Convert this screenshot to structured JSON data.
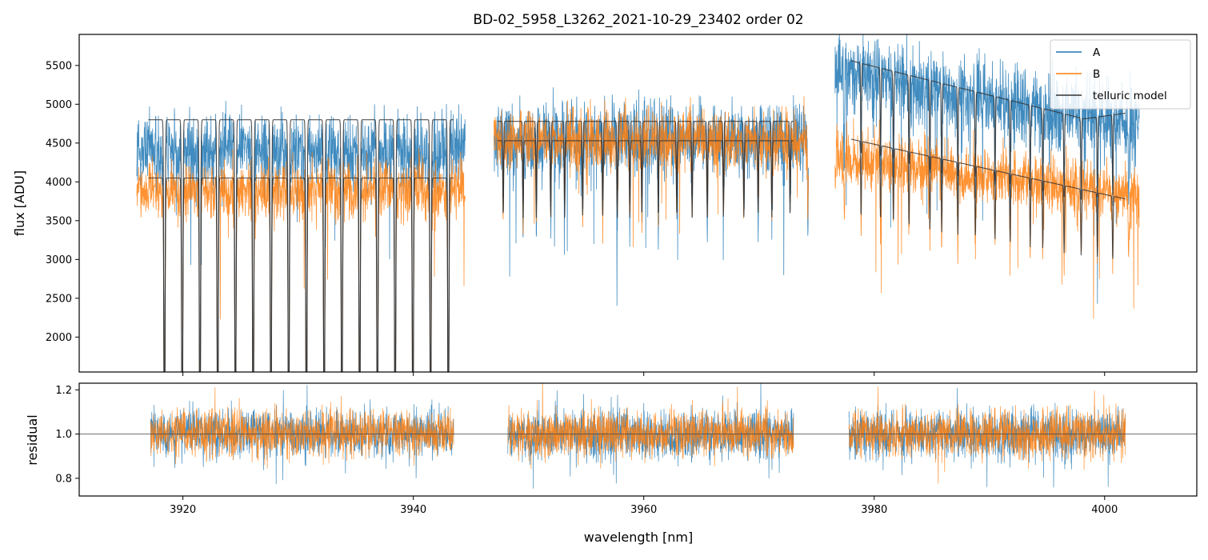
{
  "chart_data": [
    {
      "type": "line",
      "panel": "top",
      "title": "BD-02_5958_L3262_2021-10-29_23402  order 02",
      "xlabel": "",
      "ylabel": "flux [ADU]",
      "xlim": [
        3911,
        4008
      ],
      "ylim": [
        1550,
        5900
      ],
      "yticks": [
        2000,
        2500,
        3000,
        3500,
        4000,
        4500,
        5000,
        5500
      ],
      "ytick_labels": [
        "2000",
        "2500",
        "3000",
        "3500",
        "4000",
        "4500",
        "5000",
        "5500"
      ],
      "xticks": [
        3920,
        3940,
        3960,
        3980,
        4000
      ],
      "show_xtick_labels": false,
      "legend": {
        "placement": "top-right",
        "entries": [
          "A",
          "B",
          "telluric model"
        ]
      },
      "segments": [
        {
          "x_range": [
            3916.0,
            3944.5
          ],
          "A_level": 4400,
          "B_level": 3900,
          "model_A": 4800,
          "model_B": 4050,
          "deep_lines": true
        },
        {
          "x_range": [
            3947.0,
            3974.3
          ],
          "A_level": 4550,
          "B_level": 4550,
          "model_A": 4780,
          "model_B": 4530,
          "deep_lines": false
        },
        {
          "x_range": [
            3976.6,
            4003.0
          ],
          "A_level": 5000,
          "B_level": 4050,
          "model_A_start": 5560,
          "model_A_end": 4760,
          "model_B_start": 4550,
          "model_B_end": 3780,
          "deep_lines": false
        }
      ],
      "series": [
        {
          "name": "A",
          "color": "#1f77b4"
        },
        {
          "name": "B",
          "color": "#ff7f0e"
        },
        {
          "name": "telluric model",
          "color": "#333333"
        }
      ]
    },
    {
      "type": "line",
      "panel": "bottom",
      "xlabel": "wavelength [nm]",
      "ylabel": "residual",
      "xlim": [
        3911,
        4008
      ],
      "ylim": [
        0.72,
        1.23
      ],
      "yticks": [
        0.8,
        1.0,
        1.2
      ],
      "ytick_labels": [
        "0.8",
        "1.0",
        "1.2"
      ],
      "xticks": [
        3920,
        3940,
        3960,
        3980,
        4000
      ],
      "xtick_labels": [
        "3920",
        "3940",
        "3960",
        "3980",
        "4000"
      ],
      "reference_line": 1.0,
      "segments": [
        {
          "x_range": [
            3917.2,
            3943.5
          ]
        },
        {
          "x_range": [
            3948.2,
            3973.0
          ]
        },
        {
          "x_range": [
            3977.8,
            4001.8
          ]
        }
      ],
      "series": [
        {
          "name": "A",
          "color": "#1f77b4"
        },
        {
          "name": "B",
          "color": "#ff7f0e"
        }
      ]
    }
  ]
}
